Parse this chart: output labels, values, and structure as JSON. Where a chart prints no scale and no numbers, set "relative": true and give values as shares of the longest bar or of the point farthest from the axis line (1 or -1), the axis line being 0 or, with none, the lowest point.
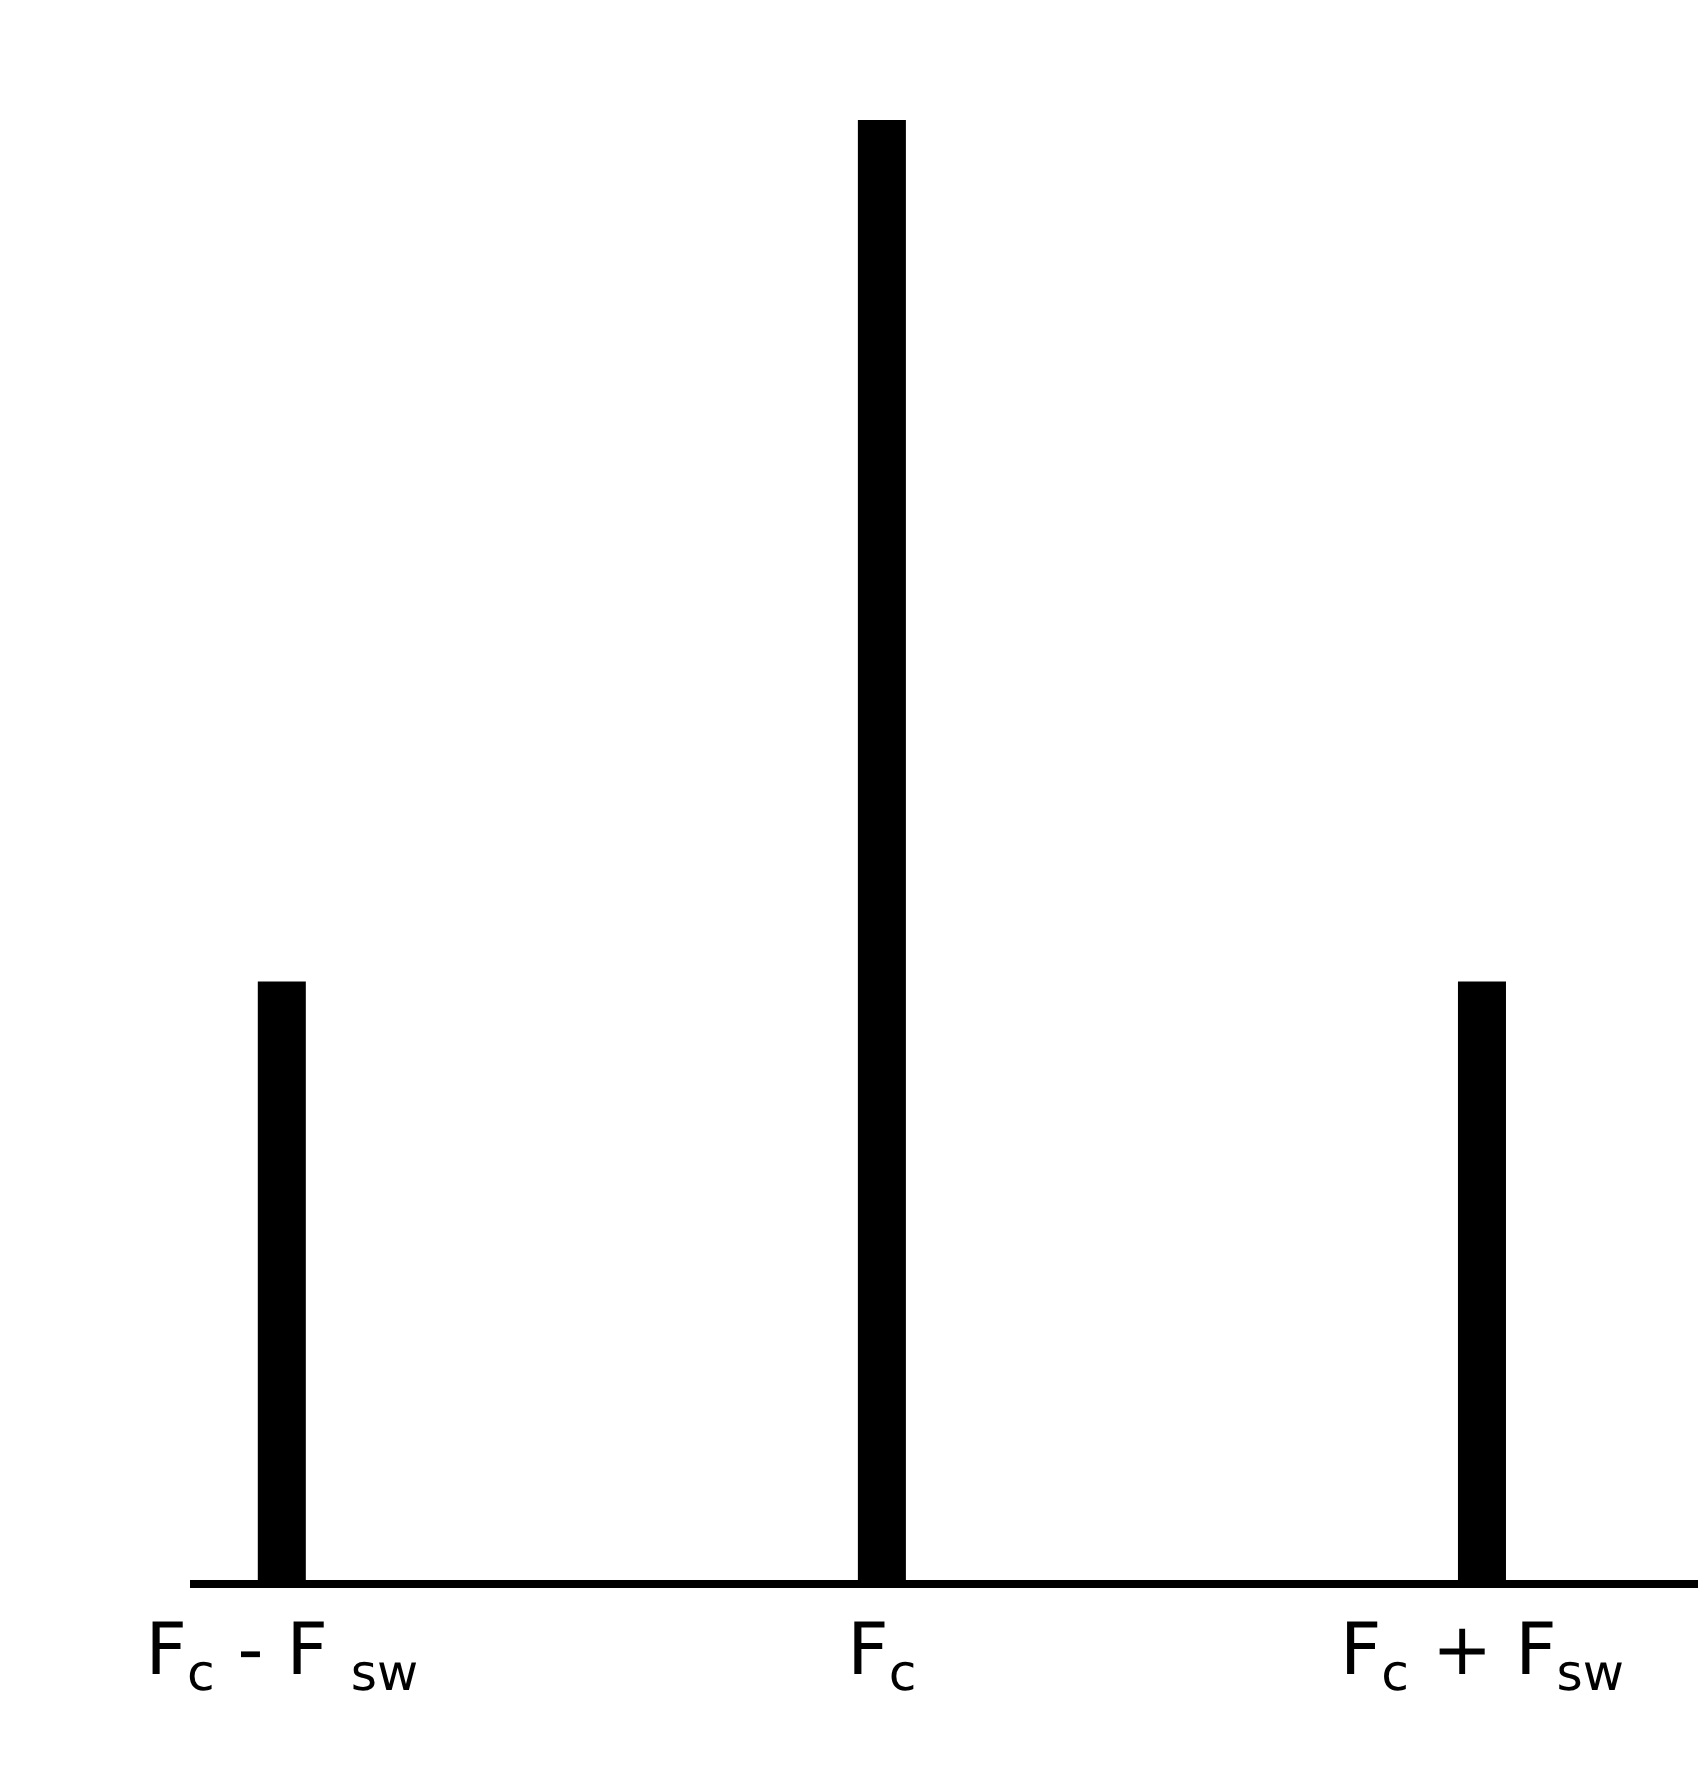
{
  "chart_data": {
    "type": "bar",
    "relative": true,
    "categories": [
      "F$_{c}$ - F $_{sw}$",
      "F$_{c}$",
      "F$_{c}$ + F$_{sw}$"
    ],
    "values": [
      0.41,
      1,
      0.41
    ],
    "color": "#000000",
    "grid": false
  }
}
